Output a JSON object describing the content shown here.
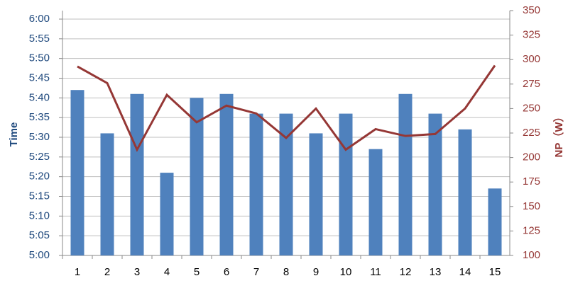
{
  "chart_data": {
    "type": "bar_line",
    "categories": [
      "1",
      "2",
      "3",
      "4",
      "5",
      "6",
      "7",
      "8",
      "9",
      "10",
      "11",
      "12",
      "13",
      "14",
      "15"
    ],
    "ylabel": "Time",
    "y2label": "NP（W）",
    "series": [
      {
        "name": "Time",
        "type": "bar",
        "color": "#4f81bd",
        "values": [
          342,
          331,
          341,
          321,
          340,
          341,
          336,
          336,
          331,
          336,
          327,
          341,
          336,
          332,
          317
        ]
      },
      {
        "name": "NP",
        "type": "line",
        "axis": "y2",
        "color": "#953735",
        "values": [
          293,
          276,
          208,
          264,
          236,
          253,
          245,
          220,
          250,
          208,
          229,
          222,
          224,
          250,
          294
        ]
      }
    ],
    "ylim": [
      300,
      360
    ],
    "yticks": [
      {
        "value": 300,
        "label": "5:00"
      },
      {
        "value": 305,
        "label": "5:05"
      },
      {
        "value": 310,
        "label": "5:10"
      },
      {
        "value": 315,
        "label": "5:15"
      },
      {
        "value": 320,
        "label": "5:20"
      },
      {
        "value": 325,
        "label": "5:25"
      },
      {
        "value": 330,
        "label": "5:30"
      },
      {
        "value": 335,
        "label": "5:35"
      },
      {
        "value": 340,
        "label": "5:40"
      },
      {
        "value": 345,
        "label": "5:45"
      },
      {
        "value": 350,
        "label": "5:50"
      },
      {
        "value": 355,
        "label": "5:55"
      },
      {
        "value": 360,
        "label": "6:00"
      }
    ],
    "y2lim": [
      100,
      350
    ],
    "y2ticks": [
      100,
      125,
      150,
      175,
      200,
      225,
      250,
      275,
      300,
      325,
      350
    ],
    "grid": true
  }
}
